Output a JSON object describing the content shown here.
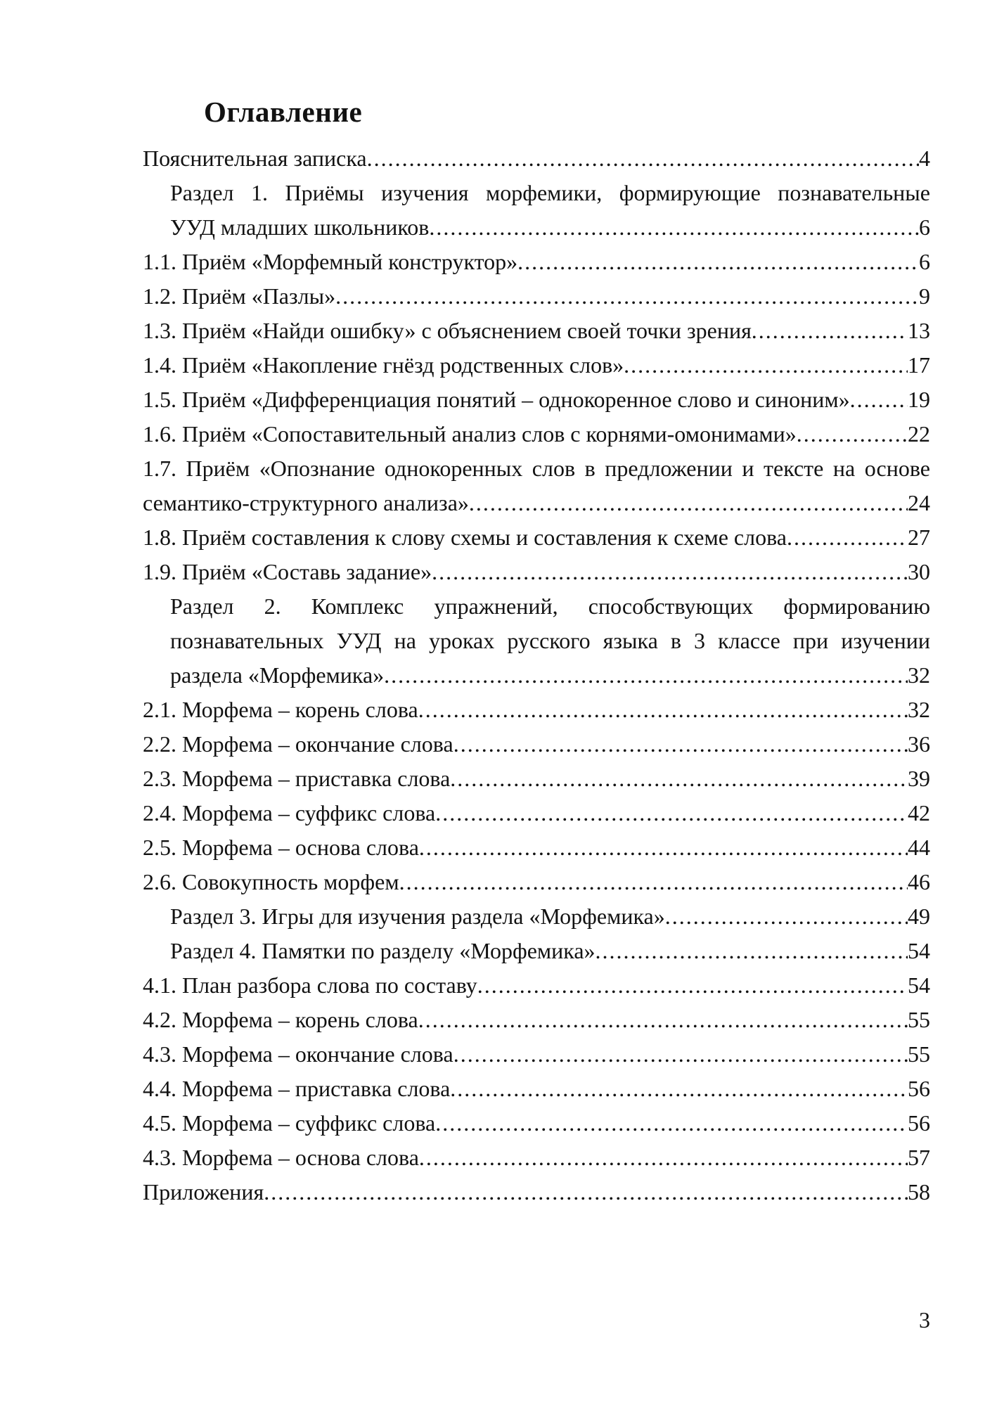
{
  "page": {
    "title": "Оглавление",
    "footer_page_number": "3",
    "background": "#ffffff",
    "text_color": "#121212"
  },
  "toc": {
    "entries": [
      {
        "lines": [
          "Пояснительная записка"
        ],
        "page": "4",
        "indent": false
      },
      {
        "lines": [
          "Раздел 1. Приёмы изучения морфемики, формирующие познавательные",
          "УУД младших школьников"
        ],
        "page": "6",
        "indent": true
      },
      {
        "lines": [
          "1.1. Приём «Морфемный конструктор»"
        ],
        "page": "6",
        "indent": false
      },
      {
        "lines": [
          "1.2. Приём «Пазлы»"
        ],
        "page": "9",
        "indent": false
      },
      {
        "lines": [
          "1.3. Приём «Найди ошибку» с объяснением своей точки зрения"
        ],
        "page": "13",
        "indent": false
      },
      {
        "lines": [
          "1.4. Приём «Накопление гнёзд родственных слов»"
        ],
        "page": "17",
        "indent": false
      },
      {
        "lines": [
          "1.5. Приём «Дифференциация понятий – однокоренное слово и синоним»"
        ],
        "page": "19",
        "indent": false
      },
      {
        "lines": [
          "1.6. Приём «Сопоставительный анализ слов с корнями-омонимами»"
        ],
        "page": "22",
        "indent": false
      },
      {
        "lines": [
          "1.7. Приём «Опознание однокоренных слов в предложении и тексте на основе",
          "семантико-структурного анализа»"
        ],
        "page": "24",
        "indent": false
      },
      {
        "lines": [
          "1.8. Приём составления к слову схемы и составления к схеме слова"
        ],
        "page": "27",
        "indent": false
      },
      {
        "lines": [
          "1.9. Приём «Составь задание»"
        ],
        "page": "30",
        "indent": false
      },
      {
        "lines": [
          "Раздел 2. Комплекс упражнений, способствующих формированию",
          "познавательных УУД на уроках русского языка в 3 классе при изучении",
          "раздела «Морфемика»"
        ],
        "page": "32",
        "indent": true
      },
      {
        "lines": [
          "2.1. Морфема – корень слова"
        ],
        "page": "32",
        "indent": false
      },
      {
        "lines": [
          "2.2. Морфема – окончание слова"
        ],
        "page": "36",
        "indent": false
      },
      {
        "lines": [
          "2.3. Морфема – приставка слова"
        ],
        "page": "39",
        "indent": false
      },
      {
        "lines": [
          "2.4. Морфема – суффикс слова"
        ],
        "page": "42",
        "indent": false
      },
      {
        "lines": [
          "2.5. Морфема – основа слова"
        ],
        "page": "44",
        "indent": false
      },
      {
        "lines": [
          "2.6. Совокупность морфем"
        ],
        "page": "46",
        "indent": false
      },
      {
        "lines": [
          "Раздел 3. Игры для изучения раздела «Морфемика»"
        ],
        "page": "49",
        "indent": true
      },
      {
        "lines": [
          "Раздел 4. Памятки по разделу «Морфемика»"
        ],
        "page": "54",
        "indent": true
      },
      {
        "lines": [
          "4.1. План разбора слова по составу"
        ],
        "page": "54",
        "indent": false
      },
      {
        "lines": [
          "4.2. Морфема – корень слова"
        ],
        "page": "55",
        "indent": false
      },
      {
        "lines": [
          "4.3. Морфема – окончание слова"
        ],
        "page": "55",
        "indent": false
      },
      {
        "lines": [
          "4.4. Морфема – приставка слова"
        ],
        "page": "56",
        "indent": false
      },
      {
        "lines": [
          "4.5. Морфема – суффикс слова"
        ],
        "page": "56",
        "indent": false
      },
      {
        "lines": [
          "4.3. Морфема – основа слова"
        ],
        "page": "57",
        "indent": false
      },
      {
        "lines": [
          "Приложения"
        ],
        "page": "58",
        "indent": false
      }
    ]
  }
}
